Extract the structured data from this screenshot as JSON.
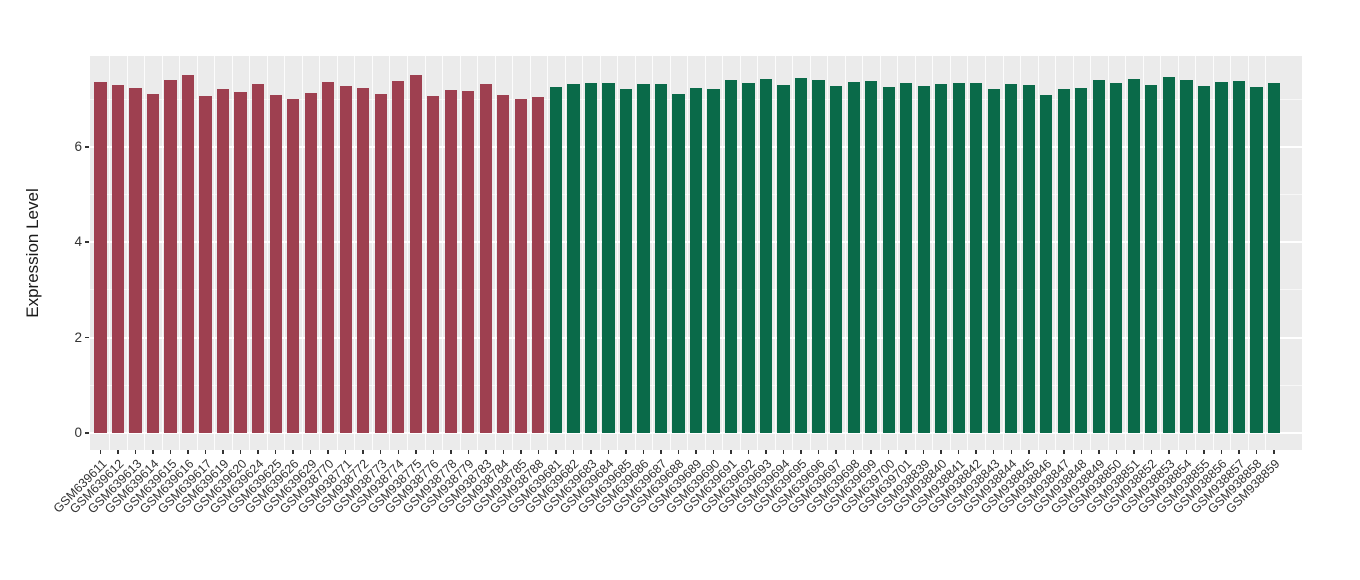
{
  "chart_data": {
    "type": "bar",
    "title": "",
    "xlabel": "",
    "ylabel": "Expression Level",
    "yticks": [
      0,
      2,
      4,
      6
    ],
    "yticks_minor": [
      1,
      3,
      5,
      7
    ],
    "ylim": [
      -0.38,
      7.9
    ],
    "grid": true,
    "legend": false,
    "panel_background": "#EBEBEB",
    "grid_color": "#FFFFFF",
    "tick_color": "#333333",
    "groups": [
      {
        "color": "#9E4050",
        "start": 0,
        "count": 26
      },
      {
        "color": "#0A6A49",
        "start": 26,
        "count": 42
      }
    ],
    "categories": [
      "GSM639611",
      "GSM639612",
      "GSM639613",
      "GSM639614",
      "GSM639615",
      "GSM639616",
      "GSM639617",
      "GSM639619",
      "GSM639620",
      "GSM639624",
      "GSM639625",
      "GSM639626",
      "GSM639629",
      "GSM938770",
      "GSM938771",
      "GSM938772",
      "GSM938773",
      "GSM938774",
      "GSM938775",
      "GSM938776",
      "GSM938778",
      "GSM938779",
      "GSM938783",
      "GSM938784",
      "GSM938785",
      "GSM938788",
      "GSM639681",
      "GSM639682",
      "GSM639683",
      "GSM639684",
      "GSM639685",
      "GSM639686",
      "GSM639687",
      "GSM639688",
      "GSM639689",
      "GSM639690",
      "GSM639691",
      "GSM639692",
      "GSM639693",
      "GSM639694",
      "GSM639695",
      "GSM639696",
      "GSM639697",
      "GSM639698",
      "GSM639699",
      "GSM639700",
      "GSM639701",
      "GSM938839",
      "GSM938840",
      "GSM938841",
      "GSM938842",
      "GSM938843",
      "GSM938844",
      "GSM938845",
      "GSM938846",
      "GSM938847",
      "GSM938848",
      "GSM938849",
      "GSM938850",
      "GSM938851",
      "GSM938852",
      "GSM938853",
      "GSM938854",
      "GSM938855",
      "GSM938856",
      "GSM938857",
      "GSM938858",
      "GSM938859"
    ],
    "values": [
      7.36,
      7.29,
      7.23,
      7.11,
      7.39,
      7.51,
      7.07,
      7.21,
      7.15,
      7.32,
      7.09,
      7.0,
      7.12,
      7.36,
      7.28,
      7.23,
      7.11,
      7.38,
      7.51,
      7.07,
      7.2,
      7.16,
      7.32,
      7.09,
      7.0,
      7.05,
      7.26,
      7.31,
      7.34,
      7.34,
      7.22,
      7.32,
      7.32,
      7.1,
      7.23,
      7.21,
      7.39,
      7.33,
      7.42,
      7.3,
      7.44,
      7.4,
      7.28,
      7.35,
      7.37,
      7.25,
      7.33,
      7.28,
      7.31,
      7.33,
      7.34,
      7.21,
      7.31,
      7.29,
      7.09,
      7.22,
      7.23,
      7.39,
      7.33,
      7.42,
      7.29,
      7.46,
      7.4,
      7.28,
      7.35,
      7.37,
      7.26,
      7.33
    ]
  }
}
